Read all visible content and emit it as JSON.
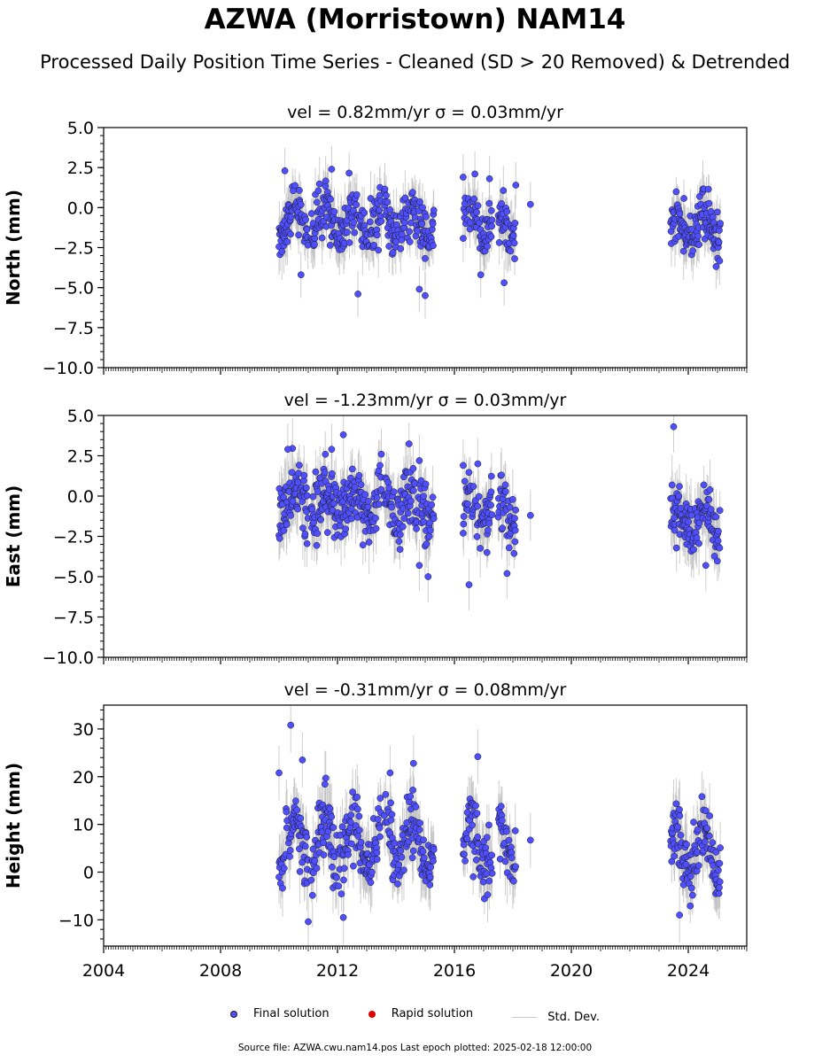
{
  "title": "AZWA (Morristown) NAM14",
  "subtitle": "Processed Daily Position Time Series - Cleaned (SD > 20 Removed) & Detrended",
  "legend": {
    "final": "Final solution",
    "rapid": "Rapid solution",
    "stddev": "Std. Dev."
  },
  "source": "Source file: AZWA.cwu.nam14.pos  Last epoch plotted: 2025-02-18 12:00:00",
  "colors": {
    "final": "#4f4fff",
    "final_edge": "#1a1a1a",
    "rapid": "#e00000",
    "stddev": "#bbbbbb"
  },
  "chart_data": [
    {
      "type": "scatter",
      "panel": "north",
      "title": "vel = 0.82mm/yr   σ = 0.03mm/yr",
      "ylabel": "North (mm)",
      "xlim": [
        2004,
        2026
      ],
      "ylim": [
        -10,
        5
      ],
      "yticks": [
        5.0,
        2.5,
        0.0,
        -2.5,
        -5.0,
        -7.5,
        -10.0
      ],
      "ytick_labels": [
        "5.0",
        "2.5",
        "0.0",
        "−2.5",
        "−5.0",
        "−7.5",
        "−10.0"
      ],
      "segments": [
        [
          2010.0,
          2011.0
        ],
        [
          2011.1,
          2013.5
        ],
        [
          2013.6,
          2015.3
        ],
        [
          2016.3,
          2017.3
        ],
        [
          2017.5,
          2018.1
        ],
        [
          2023.4,
          2025.1
        ]
      ],
      "offset": [
        [
          2004,
          -0.4
        ],
        [
          2026,
          -1.5
        ]
      ],
      "amp": 0.95,
      "sd": 0.9,
      "outliers": [
        [
          2010.2,
          2.3
        ],
        [
          2010.75,
          -4.2
        ],
        [
          2011.8,
          2.4
        ],
        [
          2012.7,
          -5.4
        ],
        [
          2014.8,
          -5.1
        ],
        [
          2015.0,
          -5.5
        ],
        [
          2016.3,
          1.9
        ],
        [
          2016.7,
          2.1
        ],
        [
          2017.2,
          1.8
        ],
        [
          2017.7,
          -4.7
        ],
        [
          2018.1,
          1.4
        ],
        [
          2018.6,
          0.2
        ],
        [
          2016.9,
          -4.2
        ]
      ]
    },
    {
      "type": "scatter",
      "panel": "east",
      "title": "vel = -1.23mm/yr   σ = 0.03mm/yr",
      "ylabel": "East (mm)",
      "xlim": [
        2004,
        2026
      ],
      "ylim": [
        -10,
        5
      ],
      "yticks": [
        5.0,
        2.5,
        0.0,
        -2.5,
        -5.0,
        -7.5,
        -10.0
      ],
      "ytick_labels": [
        "5.0",
        "2.5",
        "0.0",
        "−2.5",
        "−5.0",
        "−7.5",
        "−10.0"
      ],
      "segments": [
        [
          2010.0,
          2011.0
        ],
        [
          2011.1,
          2013.5
        ],
        [
          2013.6,
          2015.3
        ],
        [
          2016.3,
          2017.3
        ],
        [
          2017.5,
          2018.1
        ],
        [
          2023.4,
          2025.1
        ]
      ],
      "offset": [
        [
          2004,
          0.3
        ],
        [
          2026,
          -1.6
        ]
      ],
      "amp": 0.85,
      "sd": 1.0,
      "outliers": [
        [
          2010.3,
          2.9
        ],
        [
          2011.8,
          2.9
        ],
        [
          2012.2,
          3.8
        ],
        [
          2013.5,
          2.6
        ],
        [
          2014.8,
          2.2
        ],
        [
          2015.1,
          -5.0
        ],
        [
          2016.5,
          -5.5
        ],
        [
          2016.3,
          1.9
        ],
        [
          2016.8,
          2.0
        ],
        [
          2017.8,
          -4.8
        ],
        [
          2018.6,
          -1.2
        ],
        [
          2023.5,
          4.3
        ],
        [
          2024.6,
          -4.3
        ],
        [
          2014.8,
          -4.3
        ]
      ]
    },
    {
      "type": "scatter",
      "panel": "height",
      "title": "vel = -0.31mm/yr   σ = 0.08mm/yr",
      "ylabel": "Height (mm)",
      "xlim": [
        2004,
        2026
      ],
      "ylim": [
        -15.5,
        35
      ],
      "yticks": [
        30,
        20,
        10,
        0,
        -10
      ],
      "ytick_labels": [
        "30",
        "20",
        "10",
        "0",
        "−10"
      ],
      "xticks": [
        2004,
        2008,
        2012,
        2016,
        2020,
        2024
      ],
      "xtick_labels": [
        "2004",
        "2008",
        "2012",
        "2016",
        "2020",
        "2024"
      ],
      "segments": [
        [
          2010.0,
          2011.0
        ],
        [
          2011.1,
          2013.5
        ],
        [
          2013.6,
          2015.3
        ],
        [
          2016.3,
          2017.3
        ],
        [
          2017.5,
          2018.1
        ],
        [
          2023.4,
          2025.1
        ]
      ],
      "offset": [
        [
          2004,
          7
        ],
        [
          2026,
          4.5
        ]
      ],
      "amp": 5.0,
      "sd": 3.6,
      "outliers": [
        [
          2010.4,
          30.8
        ],
        [
          2010.0,
          20.8
        ],
        [
          2010.8,
          23.5
        ],
        [
          2011.0,
          -10.4
        ],
        [
          2012.2,
          -9.5
        ],
        [
          2013.8,
          20.8
        ],
        [
          2014.6,
          22.8
        ],
        [
          2016.8,
          24.2
        ],
        [
          2018.6,
          6.7
        ],
        [
          2023.7,
          -9.0
        ],
        [
          2011.6,
          19.7
        ]
      ]
    }
  ]
}
